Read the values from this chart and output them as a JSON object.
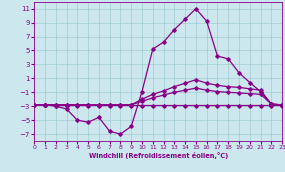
{
  "xlabel": "Windchill (Refroidissement éolien,°C)",
  "bg_color": "#cce8ee",
  "grid_color": "#99c4cc",
  "line_color": "#880088",
  "xlim": [
    0,
    23
  ],
  "ylim": [
    -8,
    12
  ],
  "yticks": [
    -7,
    -5,
    -3,
    -1,
    1,
    3,
    5,
    7,
    9,
    11
  ],
  "xticks": [
    0,
    1,
    2,
    3,
    4,
    5,
    6,
    7,
    8,
    9,
    10,
    11,
    12,
    13,
    14,
    15,
    16,
    17,
    18,
    19,
    20,
    21,
    22,
    23
  ],
  "line1_y": [
    -2.8,
    -2.8,
    -3.0,
    -3.4,
    -5.0,
    -5.3,
    -4.6,
    -6.6,
    -7.0,
    -5.9,
    -0.9,
    5.2,
    6.2,
    8.0,
    9.5,
    11.0,
    9.2,
    4.2,
    3.8,
    1.8,
    0.4,
    -0.9,
    -2.7,
    -2.8
  ],
  "line2_y": [
    -2.8,
    -2.8,
    -2.8,
    -2.8,
    -2.8,
    -2.8,
    -2.8,
    -2.8,
    -2.8,
    -2.8,
    -2.0,
    -1.3,
    -0.8,
    -0.2,
    0.3,
    0.8,
    0.3,
    -0.0,
    -0.2,
    -0.3,
    -0.5,
    -0.7,
    -2.7,
    -2.8
  ],
  "line3_y": [
    -2.8,
    -2.8,
    -2.8,
    -2.8,
    -2.8,
    -2.8,
    -2.8,
    -2.8,
    -2.8,
    -2.8,
    -2.3,
    -1.8,
    -1.4,
    -1.0,
    -0.7,
    -0.4,
    -0.7,
    -0.9,
    -1.0,
    -1.1,
    -1.2,
    -1.3,
    -2.7,
    -2.8
  ],
  "line4_y": [
    -2.8,
    -2.8,
    -2.9,
    -2.9,
    -2.9,
    -2.9,
    -2.9,
    -2.9,
    -2.9,
    -2.9,
    -2.9,
    -2.9,
    -2.9,
    -2.9,
    -2.9,
    -2.9,
    -2.9,
    -2.9,
    -2.9,
    -2.9,
    -2.9,
    -2.9,
    -2.9,
    -2.9
  ]
}
